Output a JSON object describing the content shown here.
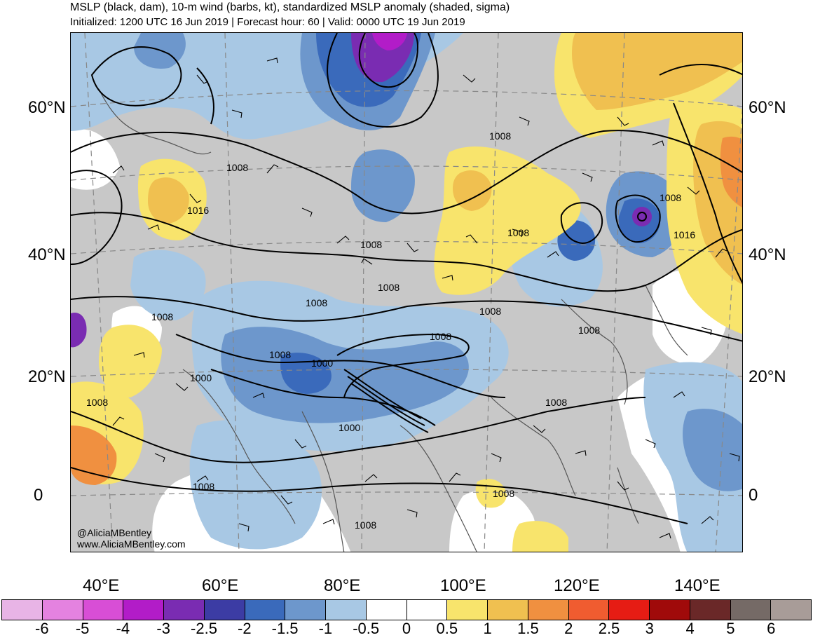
{
  "header": {
    "title": "MSLP (black, dam), 10-m wind (barbs, kt), standardized MSLP anomaly (shaded, sigma)",
    "subtitle": "Initialized: 1200 UTC 16 Jun 2019 | Forecast hour: 60 | Valid: 0000 UTC 19 Jun 2019"
  },
  "credit": {
    "handle": "@AliciaMBentley",
    "website": "www.AliciaMBentley.com"
  },
  "latitude_labels": [
    "60°N",
    "40°N",
    "20°N",
    "0"
  ],
  "longitude_labels": [
    "40°E",
    "60°E",
    "80°E",
    "100°E",
    "120°E",
    "140°E"
  ],
  "isobar_labels": [
    "1008",
    "1016",
    "1000"
  ],
  "colorbar": {
    "ticks": [
      "-6",
      "-5",
      "-4",
      "-3",
      "-2.5",
      "-2",
      "-1.5",
      "-1",
      "-0.5",
      "0",
      "0.5",
      "1",
      "1.5",
      "2",
      "2.5",
      "3",
      "4",
      "5",
      "6"
    ],
    "colors": [
      "#e8b4e6",
      "#e482e0",
      "#d84ed6",
      "#b21cc8",
      "#7a2cb2",
      "#3c3ca4",
      "#3a6abb",
      "#6d97cc",
      "#a8c8e4",
      "#ffffff",
      "#ffffff",
      "#f8e46c",
      "#f0c050",
      "#f09040",
      "#f05c30",
      "#e61c14",
      "#a00a0a",
      "#6a2828",
      "#756a66",
      "#a89c98"
    ]
  },
  "map_colors": {
    "land": "#c8c8c8",
    "ocean": "#ffffff",
    "grid": "#888888",
    "isobar": "#000000",
    "coast": "#555555"
  }
}
